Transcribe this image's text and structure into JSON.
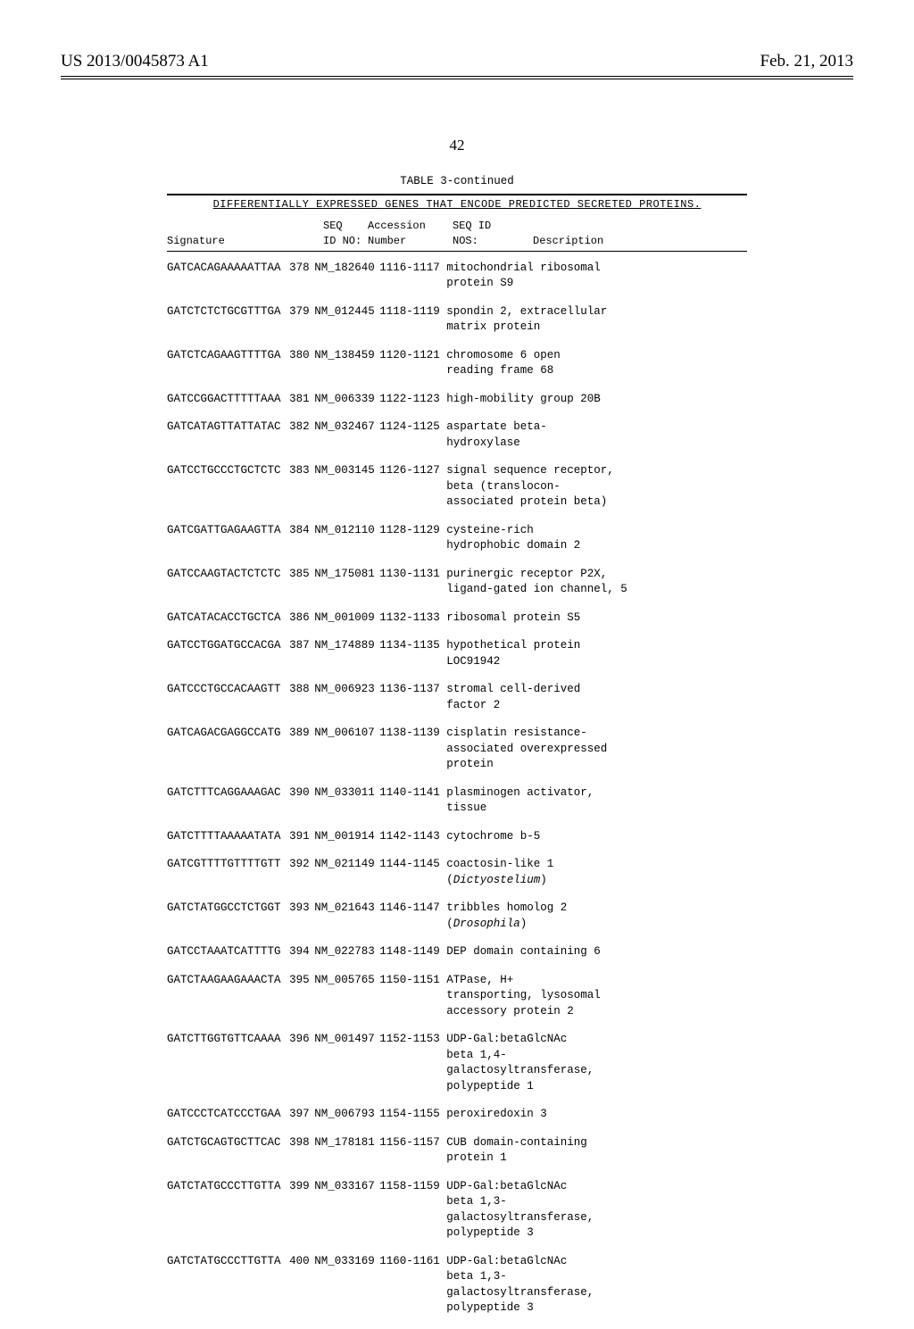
{
  "header": {
    "left": "US 2013/0045873 A1",
    "right": "Feb. 21, 2013"
  },
  "page_number": "42",
  "table": {
    "caption": "TABLE 3-continued",
    "subcaption": "DIFFERENTIALLY EXPRESSED GENES THAT ENCODE PREDICTED SECRETED PROTEINS.",
    "columns": {
      "signature": "Signature",
      "seq_id_no_line1": "SEQ",
      "seq_id_no_line2": "ID NO:",
      "accession_line1": "Accession",
      "accession_line2": "Number",
      "seq_nos_line1": "SEQ ID",
      "seq_nos_line2": "NOS:",
      "description": "Description"
    },
    "rows": [
      {
        "sig": "GATCACAGAAAAATTAA",
        "seq": "378",
        "acc": "NM_182640",
        "nos": "1116-1117",
        "desc": "mitochondrial ribosomal\nprotein S9"
      },
      {
        "sig": "GATCTCTCTGCGTTTGA",
        "seq": "379",
        "acc": "NM_012445",
        "nos": "1118-1119",
        "desc": "spondin 2, extracellular\nmatrix protein"
      },
      {
        "sig": "GATCTCAGAAGTTTTGA",
        "seq": "380",
        "acc": "NM_138459",
        "nos": "1120-1121",
        "desc": "chromosome 6 open\nreading frame 68"
      },
      {
        "sig": "GATCCGGACTTTTTAAA",
        "seq": "381",
        "acc": "NM_006339",
        "nos": "1122-1123",
        "desc": "high-mobility group 20B"
      },
      {
        "sig": "GATCATAGTTATTATAC",
        "seq": "382",
        "acc": "NM_032467",
        "nos": "1124-1125",
        "desc": "aspartate beta-\nhydroxylase"
      },
      {
        "sig": "GATCCTGCCCTGCTCTC",
        "seq": "383",
        "acc": "NM_003145",
        "nos": "1126-1127",
        "desc": "signal sequence receptor,\nbeta (translocon-\nassociated protein beta)"
      },
      {
        "sig": "GATCGATTGAGAAGTTA",
        "seq": "384",
        "acc": "NM_012110",
        "nos": "1128-1129",
        "desc": "cysteine-rich\nhydrophobic domain 2"
      },
      {
        "sig": "GATCCAAGTACTCTCTC",
        "seq": "385",
        "acc": "NM_175081",
        "nos": "1130-1131",
        "desc": "purinergic receptor P2X,\nligand-gated ion channel, 5"
      },
      {
        "sig": "GATCATACACCTGCTCA",
        "seq": "386",
        "acc": "NM_001009",
        "nos": "1132-1133",
        "desc": "ribosomal protein S5"
      },
      {
        "sig": "GATCCTGGATGCCACGA",
        "seq": "387",
        "acc": "NM_174889",
        "nos": "1134-1135",
        "desc": "hypothetical protein\nLOC91942"
      },
      {
        "sig": "GATCCCTGCCACAAGTT",
        "seq": "388",
        "acc": "NM_006923",
        "nos": "1136-1137",
        "desc": "stromal cell-derived\nfactor 2"
      },
      {
        "sig": "GATCAGACGAGGCCATG",
        "seq": "389",
        "acc": "NM_006107",
        "nos": "1138-1139",
        "desc": "cisplatin resistance-\nassociated overexpressed\nprotein"
      },
      {
        "sig": "GATCTTTCAGGAAAGAC",
        "seq": "390",
        "acc": "NM_033011",
        "nos": "1140-1141",
        "desc": "plasminogen activator,\ntissue"
      },
      {
        "sig": "GATCTTTTAAAAATATA",
        "seq": "391",
        "acc": "NM_001914",
        "nos": "1142-1143",
        "desc": "cytochrome b-5"
      },
      {
        "sig": "GATCGTTTTGTTTTGTT",
        "seq": "392",
        "acc": "NM_021149",
        "nos": "1144-1145",
        "desc": "coactosin-like 1\n(<i>Dictyostelium</i>)"
      },
      {
        "sig": "GATCTATGGCCTCTGGT",
        "seq": "393",
        "acc": "NM_021643",
        "nos": "1146-1147",
        "desc": "tribbles homolog 2\n(<i>Drosophila</i>)"
      },
      {
        "sig": "GATCCTAAATCATTTTG",
        "seq": "394",
        "acc": "NM_022783",
        "nos": "1148-1149",
        "desc": "DEP domain containing 6"
      },
      {
        "sig": "GATCTAAGAAGAAACTA",
        "seq": "395",
        "acc": "NM_005765",
        "nos": "1150-1151",
        "desc": "ATPase, H+\ntransporting, lysosomal\naccessory protein 2"
      },
      {
        "sig": "GATCTTGGTGTTCAAAA",
        "seq": "396",
        "acc": "NM_001497",
        "nos": "1152-1153",
        "desc": "UDP-Gal:betaGlcNAc\nbeta 1,4-\ngalactosyltransferase,\npolypeptide 1"
      },
      {
        "sig": "GATCCCTCATCCCTGAA",
        "seq": "397",
        "acc": "NM_006793",
        "nos": "1154-1155",
        "desc": "peroxiredoxin 3"
      },
      {
        "sig": "GATCTGCAGTGCTTCAC",
        "seq": "398",
        "acc": "NM_178181",
        "nos": "1156-1157",
        "desc": "CUB domain-containing\nprotein 1"
      },
      {
        "sig": "GATCTATGCCCTTGTTA",
        "seq": "399",
        "acc": "NM_033167",
        "nos": "1158-1159",
        "desc": "UDP-Gal:betaGlcNAc\nbeta 1,3-\ngalactosyltransferase,\npolypeptide 3"
      },
      {
        "sig": "GATCTATGCCCTTGTTA",
        "seq": "400",
        "acc": "NM_033169",
        "nos": "1160-1161",
        "desc": "UDP-Gal:betaGlcNAc\nbeta 1,3-\ngalactosyltransferase,\npolypeptide 3"
      }
    ]
  }
}
